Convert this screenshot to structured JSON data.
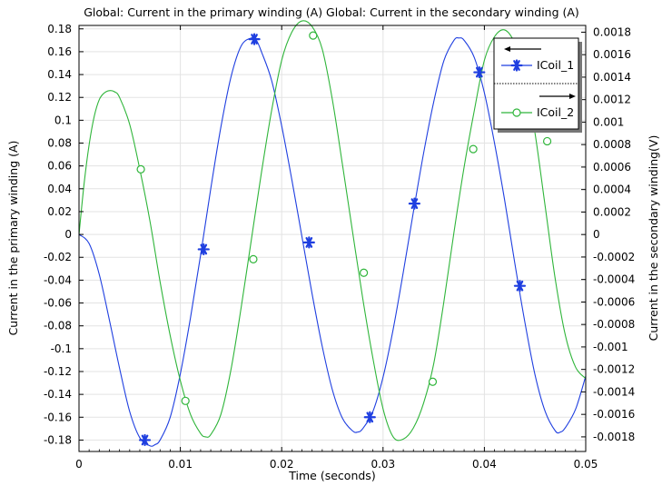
{
  "chart_data": {
    "type": "line",
    "title": "Global: Current in the primary winding (A)  Global: Current in the secondary winding (A)",
    "xlabel": "Time (seconds)",
    "ylabel_left": "Current in the primary winding (A)",
    "ylabel_right": "Current in the secondary winding(V)",
    "xlim": [
      0,
      0.05
    ],
    "ylim_left": [
      -0.19,
      0.183
    ],
    "ylim_right": [
      -0.00193,
      0.00186
    ],
    "grid": true,
    "legend_position": "top-right",
    "x_ticks": [
      "0",
      "0.01",
      "0.02",
      "0.03",
      "0.04",
      "0.05"
    ],
    "y_left_ticks": [
      "0.18",
      "0.16",
      "0.14",
      "0.12",
      "0.1",
      "0.08",
      "0.06",
      "0.04",
      "0.02",
      "0",
      "-0.02",
      "-0.04",
      "-0.06",
      "-0.08",
      "-0.1",
      "-0.12",
      "-0.14",
      "-0.16",
      "-0.18"
    ],
    "y_right_ticks": [
      "0.0018",
      "0.0016",
      "0.0014",
      "0.0012",
      "0.001",
      "0.0008",
      "0.0006",
      "0.0004",
      "0.0002",
      "0",
      "-0.0002",
      "-0.0004",
      "-0.0006",
      "-0.0008",
      "-0.001",
      "-0.0012",
      "-0.0014",
      "-0.0016",
      "-0.0018"
    ],
    "series": [
      {
        "name": "ICoil_1",
        "axis": "left",
        "color": "#1f3fe0",
        "marker": "asterisk",
        "x": [
          0,
          0.001,
          0.002,
          0.003,
          0.004,
          0.005,
          0.006,
          0.007,
          0.0075,
          0.008,
          0.009,
          0.01,
          0.011,
          0.012,
          0.013,
          0.014,
          0.015,
          0.016,
          0.017,
          0.0175,
          0.018,
          0.019,
          0.02,
          0.021,
          0.022,
          0.023,
          0.024,
          0.025,
          0.026,
          0.027,
          0.0275,
          0.028,
          0.029,
          0.03,
          0.031,
          0.032,
          0.033,
          0.034,
          0.035,
          0.036,
          0.037,
          0.0375,
          0.038,
          0.039,
          0.04,
          0.041,
          0.042,
          0.043,
          0.044,
          0.045,
          0.046,
          0.047,
          0.0475,
          0.048,
          0.049,
          0.05
        ],
        "y": [
          0,
          -0.008,
          -0.035,
          -0.075,
          -0.117,
          -0.155,
          -0.178,
          -0.185,
          -0.184,
          -0.18,
          -0.16,
          -0.122,
          -0.073,
          -0.018,
          0.04,
          0.094,
          0.138,
          0.165,
          0.172,
          0.17,
          0.16,
          0.135,
          0.095,
          0.048,
          -0.002,
          -0.052,
          -0.098,
          -0.136,
          -0.161,
          -0.172,
          -0.173,
          -0.17,
          -0.155,
          -0.125,
          -0.083,
          -0.033,
          0.02,
          0.071,
          0.116,
          0.152,
          0.17,
          0.172,
          0.17,
          0.155,
          0.124,
          0.08,
          0.03,
          -0.025,
          -0.077,
          -0.123,
          -0.155,
          -0.172,
          -0.173,
          -0.169,
          -0.153,
          -0.124
        ],
        "marker_points": [
          [
            0.0065,
            -0.18
          ],
          [
            0.0123,
            -0.013
          ],
          [
            0.0173,
            0.171
          ],
          [
            0.0227,
            -0.007
          ],
          [
            0.0287,
            -0.16
          ],
          [
            0.0331,
            0.027
          ],
          [
            0.0395,
            0.142
          ],
          [
            0.0435,
            -0.045
          ]
        ]
      },
      {
        "name": "ICoil_2",
        "axis": "right",
        "color": "#2fb53a",
        "marker": "circle",
        "x": [
          0,
          0.0005,
          0.001,
          0.0015,
          0.002,
          0.0025,
          0.003,
          0.0035,
          0.004,
          0.005,
          0.006,
          0.007,
          0.008,
          0.009,
          0.01,
          0.011,
          0.012,
          0.0125,
          0.013,
          0.014,
          0.015,
          0.016,
          0.017,
          0.018,
          0.019,
          0.02,
          0.021,
          0.022,
          0.023,
          0.024,
          0.025,
          0.026,
          0.027,
          0.028,
          0.029,
          0.03,
          0.031,
          0.032,
          0.033,
          0.034,
          0.035,
          0.036,
          0.037,
          0.038,
          0.039,
          0.04,
          0.041,
          0.042,
          0.043,
          0.044,
          0.045,
          0.046,
          0.047,
          0.048,
          0.049,
          0.05
        ],
        "y": [
          0,
          0.00045,
          0.0008,
          0.00105,
          0.0012,
          0.00126,
          0.00128,
          0.00127,
          0.00122,
          0.00098,
          0.00058,
          0.00012,
          -0.00042,
          -0.0009,
          -0.0013,
          -0.0016,
          -0.00177,
          -0.0018,
          -0.00178,
          -0.0016,
          -0.0012,
          -0.00065,
          -5e-05,
          0.00055,
          0.0011,
          0.00155,
          0.0018,
          0.0019,
          0.00185,
          0.00165,
          0.0012,
          0.00062,
          2e-05,
          -0.00057,
          -0.0011,
          -0.00155,
          -0.0018,
          -0.00182,
          -0.00172,
          -0.0015,
          -0.00115,
          -0.0006,
          2e-05,
          0.0006,
          0.0011,
          0.00155,
          0.00176,
          0.00182,
          0.0017,
          0.0014,
          0.0009,
          0.00025,
          -0.0004,
          -0.0009,
          -0.00118,
          -0.00128
        ],
        "marker_points": [
          [
            0.0061,
            0.00058
          ],
          [
            0.0105,
            -0.00148
          ],
          [
            0.0172,
            -0.00022
          ],
          [
            0.0231,
            0.00177
          ],
          [
            0.0281,
            -0.00034
          ],
          [
            0.0349,
            -0.00131
          ],
          [
            0.0389,
            0.00076
          ],
          [
            0.0462,
            0.00083
          ]
        ]
      }
    ]
  }
}
